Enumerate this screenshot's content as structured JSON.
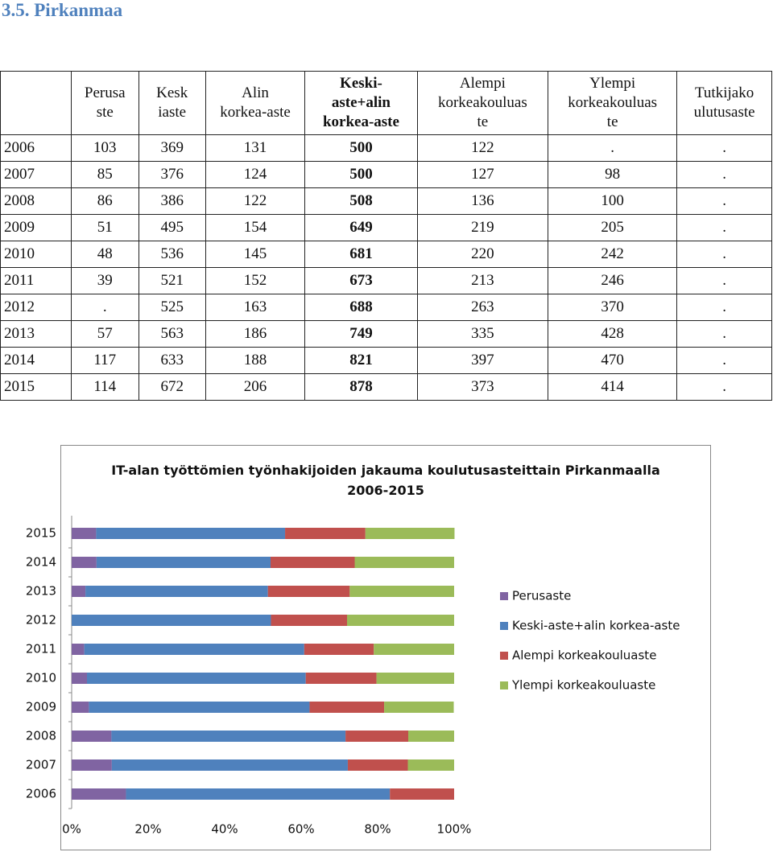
{
  "heading": "3.5. Pirkanmaa",
  "table": {
    "header": [
      "Perusa\nste",
      "Kesk\niaste",
      "Alin\nkorkea-aste",
      "Keski-\naste+alin\nkorkea-aste",
      "Alempi\nkorkeakouluas\nte",
      "Ylempi\nkorkeakouluas\nte",
      "Tutkijako\nulutusaste"
    ],
    "rows": [
      [
        "2006",
        "103",
        "369",
        "131",
        "500",
        "122",
        ".",
        "."
      ],
      [
        "2007",
        "85",
        "376",
        "124",
        "500",
        "127",
        "98",
        "."
      ],
      [
        "2008",
        "86",
        "386",
        "122",
        "508",
        "136",
        "100",
        "."
      ],
      [
        "2009",
        "51",
        "495",
        "154",
        "649",
        "219",
        "205",
        "."
      ],
      [
        "2010",
        "48",
        "536",
        "145",
        "681",
        "220",
        "242",
        "."
      ],
      [
        "2011",
        "39",
        "521",
        "152",
        "673",
        "213",
        "246",
        "."
      ],
      [
        "2012",
        ".",
        "525",
        "163",
        "688",
        "263",
        "370",
        "."
      ],
      [
        "2013",
        "57",
        "563",
        "186",
        "749",
        "335",
        "428",
        "."
      ],
      [
        "2014",
        "117",
        "633",
        "188",
        "821",
        "397",
        "470",
        "."
      ],
      [
        "2015",
        "114",
        "672",
        "206",
        "878",
        "373",
        "414",
        "."
      ]
    ]
  },
  "chart_data": {
    "type": "bar",
    "orientation": "horizontal",
    "stacked": true,
    "title": "IT-alan työttömien työnhakijoiden jakauma koulutusasteittain Pirkanmaalla\n2006-2015",
    "categories": [
      "2006",
      "2007",
      "2008",
      "2009",
      "2010",
      "2011",
      "2012",
      "2013",
      "2014",
      "2015"
    ],
    "series": [
      {
        "name": "Perusaste",
        "color": "#8064a2",
        "values": [
          14.2,
          10.5,
          10.4,
          4.5,
          4.0,
          3.3,
          null,
          3.6,
          6.5,
          6.4
        ]
      },
      {
        "name": "Keski-aste+alin korkea-aste",
        "color": "#4f81bd",
        "values": [
          69.0,
          61.7,
          61.2,
          57.7,
          57.2,
          57.5,
          52.1,
          47.7,
          45.5,
          49.4
        ]
      },
      {
        "name": "Alempi korkeakouluaste",
        "color": "#c0504d",
        "values": [
          16.8,
          15.7,
          16.4,
          19.5,
          18.5,
          18.2,
          19.9,
          21.4,
          22.0,
          21.0
        ]
      },
      {
        "name": "Ylempi korkeakouluaste",
        "color": "#9bbb59",
        "values": [
          null,
          12.1,
          12.0,
          18.2,
          20.3,
          21.0,
          28.0,
          27.3,
          26.0,
          23.3
        ]
      }
    ],
    "xlim": [
      0,
      100
    ],
    "xticks": [
      {
        "value": 0,
        "label": "0%"
      },
      {
        "value": 20,
        "label": "20%"
      },
      {
        "value": 40,
        "label": "40%"
      },
      {
        "value": 60,
        "label": "60%"
      },
      {
        "value": 80,
        "label": "80%"
      },
      {
        "value": 100,
        "label": "100%"
      }
    ],
    "legend": "right"
  }
}
